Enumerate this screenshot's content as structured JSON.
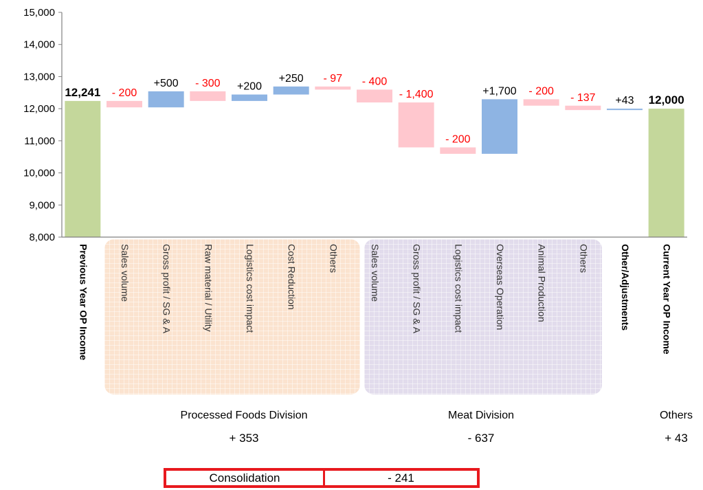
{
  "chart_data": {
    "type": "waterfall",
    "ylim": [
      8000,
      15000
    ],
    "yticks": [
      "8,000",
      "9,000",
      "10,000",
      "11,000",
      "12,000",
      "13,000",
      "14,000",
      "15,000"
    ],
    "bars": [
      {
        "label": "Previous Year OP Income",
        "start": 0,
        "end": 12241,
        "kind": "total",
        "data_label": "12,241"
      },
      {
        "label": "Sales volume",
        "start": 12241,
        "end": 12041,
        "kind": "decrease",
        "data_label": "- 200"
      },
      {
        "label": "Gross profit / SG & A",
        "start": 12041,
        "end": 12541,
        "kind": "increase",
        "data_label": "+500"
      },
      {
        "label": "Raw material / Utility",
        "start": 12541,
        "end": 12241,
        "kind": "decrease",
        "data_label": "- 300"
      },
      {
        "label": "Logistics cost impact",
        "start": 12241,
        "end": 12441,
        "kind": "increase",
        "data_label": "+200"
      },
      {
        "label": "Cost Reduction",
        "start": 12441,
        "end": 12691,
        "kind": "increase",
        "data_label": "+250"
      },
      {
        "label": "Others",
        "start": 12691,
        "end": 12594,
        "kind": "decrease",
        "data_label": "- 97"
      },
      {
        "label": "Sales volume",
        "start": 12594,
        "end": 12194,
        "kind": "decrease",
        "data_label": "- 400"
      },
      {
        "label": "Gross profit / SG & A",
        "start": 12194,
        "end": 10794,
        "kind": "decrease",
        "data_label": "- 1,400"
      },
      {
        "label": "Logistics cost impact",
        "start": 10794,
        "end": 10594,
        "kind": "decrease",
        "data_label": "- 200"
      },
      {
        "label": "Overseas Operation",
        "start": 10594,
        "end": 12294,
        "kind": "increase",
        "data_label": "+1,700"
      },
      {
        "label": "Animal Production",
        "start": 12294,
        "end": 12094,
        "kind": "decrease",
        "data_label": "- 200"
      },
      {
        "label": "Others",
        "start": 12094,
        "end": 11957,
        "kind": "decrease",
        "data_label": "- 137"
      },
      {
        "label": "Other/Adjustments",
        "start": 11957,
        "end": 12000,
        "kind": "increase",
        "data_label": "+43"
      },
      {
        "label": "Current Year OP Income",
        "start": 0,
        "end": 12000,
        "kind": "total",
        "data_label": "12,000"
      }
    ],
    "colors": {
      "total": "#c4d79b",
      "increase": "#8eb4e3",
      "decrease": "#ffc7ce",
      "neg_label": "#ff0000",
      "pos_label": "#000000"
    }
  },
  "groups": {
    "processed": {
      "name": "Processed Foods Division",
      "value": "+ 353"
    },
    "meat": {
      "name": "Meat Division",
      "value": "- 637"
    },
    "others": {
      "name": "Others",
      "value": "+ 43"
    }
  },
  "consolidation": {
    "label": "Consolidation",
    "value": "- 241"
  }
}
